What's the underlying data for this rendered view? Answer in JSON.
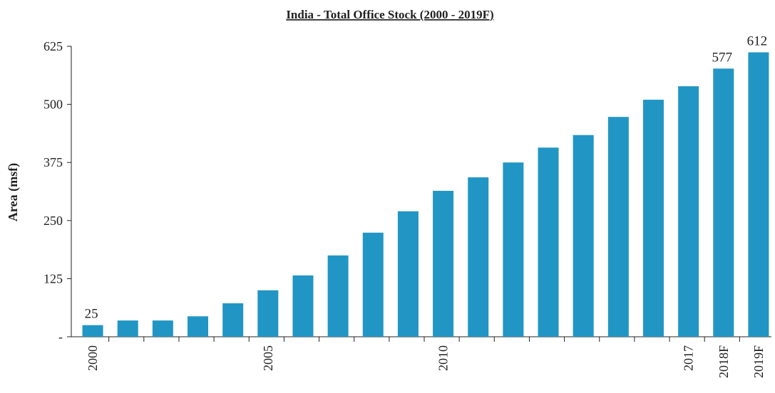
{
  "chart_data": {
    "type": "bar",
    "title": "India - Total Office Stock (2000 - 2019F)",
    "y_label": "Area (msf)",
    "categories": [
      "2000",
      null,
      null,
      null,
      null,
      "2005",
      null,
      null,
      null,
      null,
      "2010",
      null,
      null,
      null,
      null,
      null,
      null,
      "2017",
      "2018F",
      "2019F"
    ],
    "values": [
      25,
      35,
      35,
      44,
      72,
      100,
      132,
      175,
      224,
      270,
      314,
      343,
      375,
      407,
      434,
      473,
      510,
      539,
      577,
      612
    ],
    "value_labels": [
      "25",
      null,
      null,
      null,
      null,
      null,
      null,
      null,
      null,
      null,
      null,
      null,
      null,
      null,
      null,
      null,
      null,
      null,
      "577",
      "612"
    ],
    "color": "#2196c4",
    "ylim": [
      0,
      625
    ],
    "yticks": [
      {
        "value": 0,
        "label": "-"
      },
      125,
      250,
      375,
      500,
      625
    ],
    "grid": false
  }
}
